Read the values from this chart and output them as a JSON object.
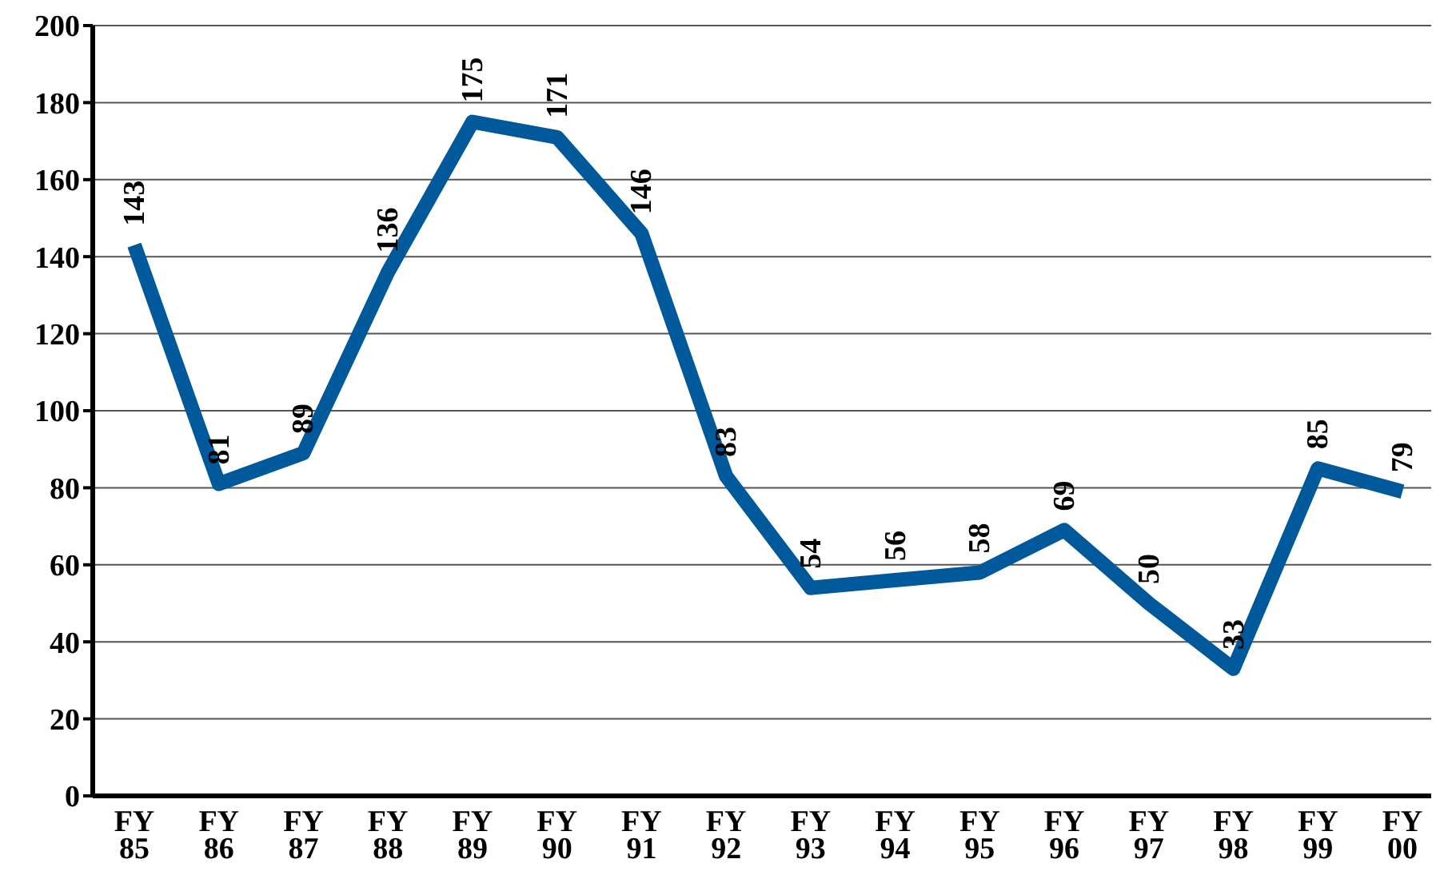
{
  "chart_data": {
    "type": "line",
    "categories": [
      "FY 85",
      "FY 86",
      "FY 87",
      "FY 88",
      "FY 89",
      "FY 90",
      "FY 91",
      "FY 92",
      "FY 93",
      "FY 94",
      "FY 95",
      "FY 96",
      "FY 97",
      "FY 98",
      "FY 99",
      "FY 00"
    ],
    "series": [
      {
        "color": "#00599a",
        "values": [
          143,
          81,
          89,
          136,
          175,
          171,
          146,
          83,
          54,
          56,
          58,
          69,
          50,
          33,
          85,
          79
        ]
      }
    ],
    "ylim": [
      0,
      200
    ],
    "yticks": [
      0,
      20,
      40,
      60,
      80,
      100,
      120,
      140,
      160,
      180,
      200
    ],
    "grid": "y",
    "data_labels": true,
    "marker": "none",
    "line_style": "solid"
  }
}
